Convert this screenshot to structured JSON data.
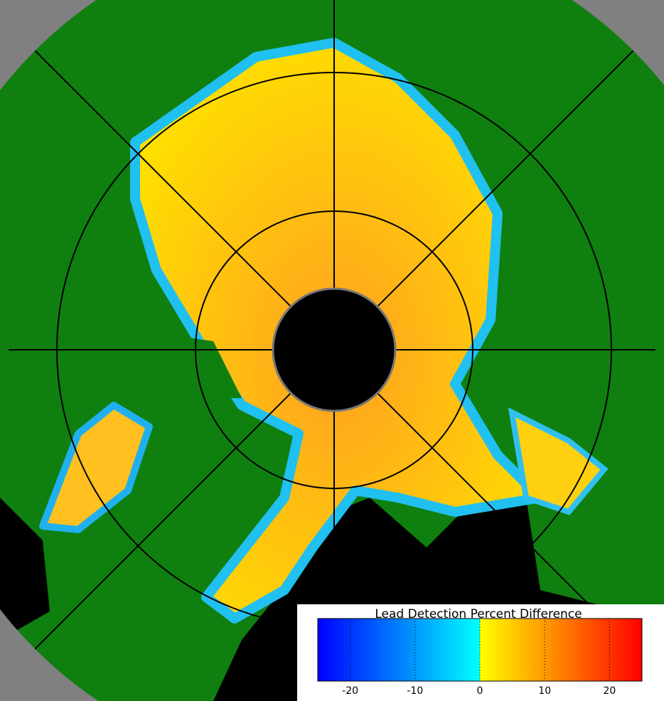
{
  "colorbar": {
    "title": "Lead Detection Percent Difference",
    "lim": [
      -25,
      25
    ],
    "ticks": [
      -20,
      -10,
      0,
      10,
      20
    ],
    "colors": [
      "#0000ff",
      "#00ffff",
      "#ffff00",
      "#ff0000"
    ]
  }
}
